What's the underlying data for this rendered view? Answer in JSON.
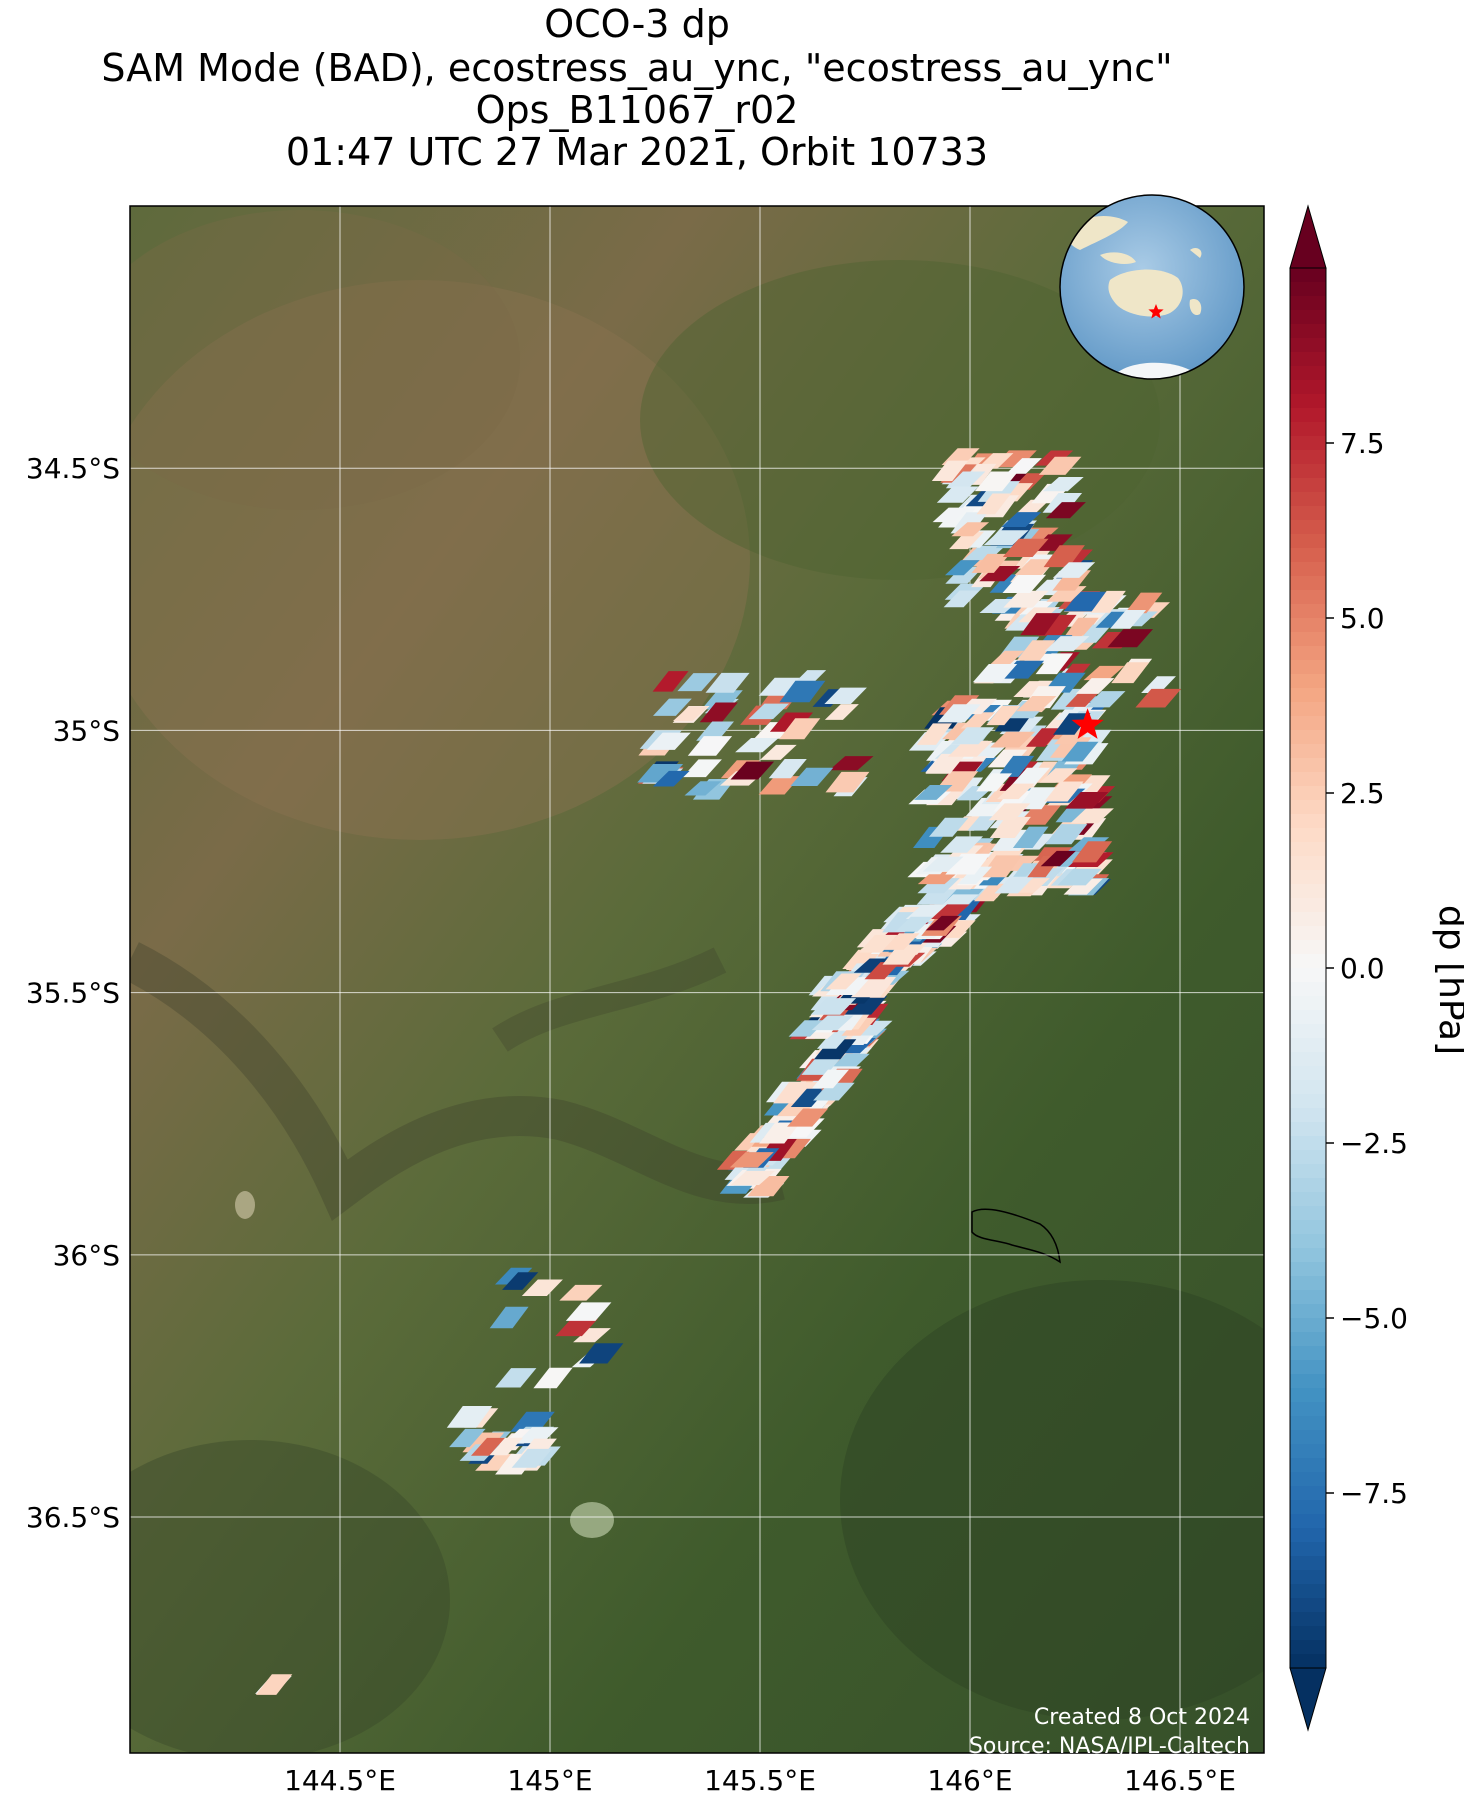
{
  "title": {
    "line1": "OCO-3 dp",
    "line2": "SAM Mode (BAD), ecostress_au_ync, \"ecostress_au_ync\"",
    "line3": "Ops_B11067_r02",
    "line4": "01:47 UTC 27 Mar 2021, Orbit 10733"
  },
  "map": {
    "lon_range": [
      144.0,
      146.7
    ],
    "lat_range": [
      -36.95,
      -34.0
    ],
    "lat_ticks": [
      {
        "value": -34.5,
        "label": "34.5°S"
      },
      {
        "value": -35.0,
        "label": "35°S"
      },
      {
        "value": -35.5,
        "label": "35.5°S"
      },
      {
        "value": -36.0,
        "label": "36°S"
      },
      {
        "value": -36.5,
        "label": "36.5°S"
      }
    ],
    "lon_ticks": [
      {
        "value": 144.5,
        "label": "144.5°E"
      },
      {
        "value": 145.0,
        "label": "145°E"
      },
      {
        "value": 145.5,
        "label": "145.5°E"
      },
      {
        "value": 146.0,
        "label": "146°E"
      },
      {
        "value": 146.5,
        "label": "146.5°E"
      }
    ],
    "target_marker": {
      "lon": 146.28,
      "lat": -34.99,
      "color": "#ff0000",
      "icon": "star"
    },
    "background": "satellite imagery (farmland, green/brown)",
    "credit_line1": "Created 8 Oct 2024",
    "credit_line2": "Source: NASA/JPL-Caltech"
  },
  "inset_globe": {
    "description_icon": "globe-icon",
    "ocean_color": "#7fb0d8",
    "land_color": "#efe6c8",
    "marker_color": "#ff0000"
  },
  "colorbar": {
    "label": "dp [hPa]",
    "vmin": -10,
    "vmax": 10,
    "colormap": "RdBu_r",
    "extend": "both",
    "ticks": [
      {
        "value": 7.5,
        "label": "7.5"
      },
      {
        "value": 5.0,
        "label": "5.0"
      },
      {
        "value": 2.5,
        "label": "2.5"
      },
      {
        "value": 0.0,
        "label": "0.0"
      },
      {
        "value": -2.5,
        "label": "−2.5"
      },
      {
        "value": -5.0,
        "label": "−5.0"
      },
      {
        "value": -7.5,
        "label": "−7.5"
      }
    ]
  },
  "soundings": {
    "clusters": [
      {
        "name": "main-swath-south",
        "lon": [
          145.48,
          145.75
        ],
        "lat": [
          -35.85,
          -35.55
        ]
      },
      {
        "name": "main-swath-mid",
        "lon": [
          145.65,
          145.95
        ],
        "lat": [
          -35.55,
          -35.35
        ]
      },
      {
        "name": "main-swath-upper",
        "lon": [
          145.8,
          146.06
        ],
        "lat": [
          -35.42,
          -35.25
        ]
      },
      {
        "name": "north-cluster",
        "lon": [
          145.9,
          146.3
        ],
        "lat": [
          -35.3,
          -34.95
        ]
      },
      {
        "name": "north-east-cluster",
        "lon": [
          146.05,
          146.45
        ],
        "lat": [
          -34.95,
          -34.75
        ]
      },
      {
        "name": "far-north-cluster",
        "lon": [
          145.95,
          146.25
        ],
        "lat": [
          -34.75,
          -34.47
        ]
      },
      {
        "name": "west-scatter",
        "lon": [
          145.25,
          145.75
        ],
        "lat": [
          -35.12,
          -34.9
        ]
      },
      {
        "name": "south-west-small",
        "lon": [
          144.8,
          144.98
        ],
        "lat": [
          -36.4,
          -36.3
        ]
      },
      {
        "name": "south-west-mid",
        "lon": [
          144.88,
          145.14
        ],
        "lat": [
          -36.25,
          -36.02
        ]
      },
      {
        "name": "far-south-west",
        "lon": [
          144.34,
          144.38
        ],
        "lat": [
          -36.85,
          -36.8
        ]
      }
    ]
  }
}
